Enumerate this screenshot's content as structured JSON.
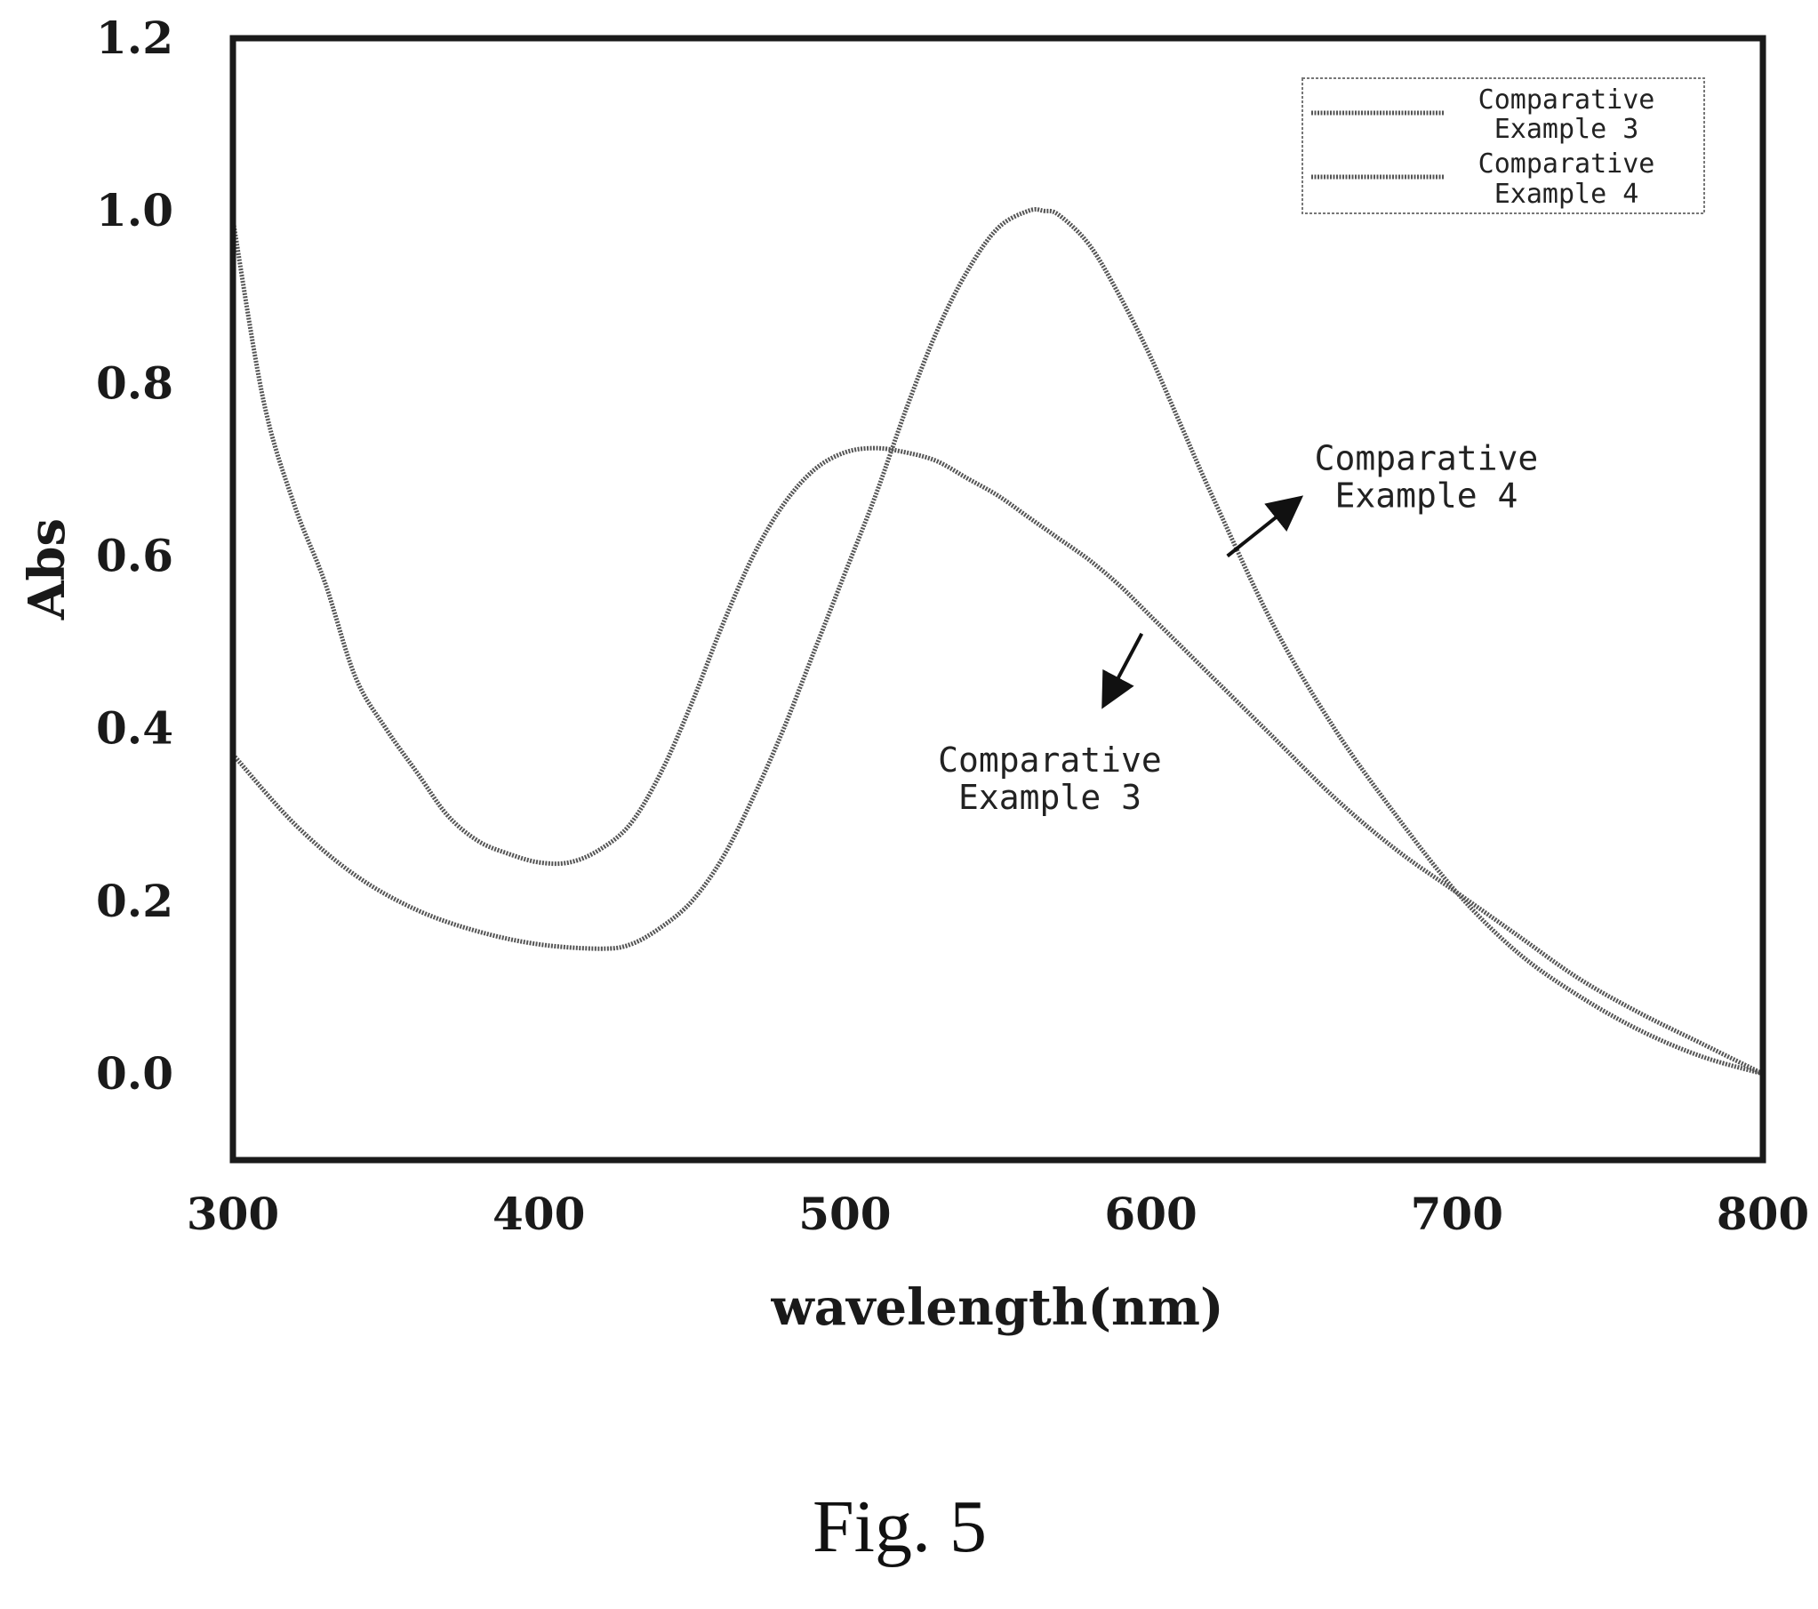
{
  "chart_data": {
    "type": "line",
    "title": "",
    "xlabel": "wavelength(nm)",
    "ylabel": "Abs",
    "xlim": [
      300,
      800
    ],
    "ylim": [
      -0.1,
      1.2
    ],
    "x_ticks": [
      300,
      400,
      500,
      600,
      700,
      800
    ],
    "y_ticks": [
      0.0,
      0.2,
      0.4,
      0.6,
      0.8,
      1.0,
      1.2
    ],
    "x_tick_labels": [
      "300",
      "400",
      "500",
      "600",
      "700",
      "800"
    ],
    "y_tick_labels": [
      "0.0",
      "0.2",
      "0.4",
      "0.6",
      "0.8",
      "1.0",
      "1.2"
    ],
    "grid": false,
    "legend_position": "top-right",
    "series": [
      {
        "name": "Comparative Example 3",
        "legend_lines": [
          "Comparative",
          "Example 3"
        ],
        "x": [
          300,
          310,
          320,
          330,
          340,
          350,
          360,
          370,
          380,
          390,
          400,
          410,
          420,
          430,
          440,
          450,
          460,
          470,
          480,
          490,
          500,
          510,
          520,
          530,
          540,
          550,
          560,
          570,
          580,
          590,
          600,
          620,
          640,
          660,
          680,
          700,
          720,
          740,
          760,
          780,
          800
        ],
        "y": [
          0.99,
          0.78,
          0.66,
          0.57,
          0.46,
          0.4,
          0.35,
          0.3,
          0.27,
          0.255,
          0.245,
          0.245,
          0.26,
          0.29,
          0.35,
          0.43,
          0.52,
          0.6,
          0.66,
          0.7,
          0.72,
          0.725,
          0.72,
          0.71,
          0.69,
          0.67,
          0.645,
          0.62,
          0.595,
          0.565,
          0.53,
          0.46,
          0.39,
          0.32,
          0.26,
          0.21,
          0.16,
          0.11,
          0.07,
          0.035,
          0.0
        ]
      },
      {
        "name": "Comparative Example 4",
        "legend_lines": [
          "Comparative",
          "Example 4"
        ],
        "x": [
          300,
          320,
          340,
          360,
          380,
          400,
          420,
          430,
          440,
          450,
          460,
          470,
          480,
          490,
          500,
          510,
          520,
          530,
          540,
          550,
          560,
          565,
          570,
          580,
          590,
          600,
          610,
          620,
          640,
          660,
          680,
          700,
          720,
          740,
          760,
          780,
          800
        ],
        "y": [
          0.37,
          0.29,
          0.23,
          0.19,
          0.165,
          0.15,
          0.145,
          0.15,
          0.17,
          0.2,
          0.25,
          0.32,
          0.4,
          0.49,
          0.58,
          0.67,
          0.77,
          0.86,
          0.93,
          0.98,
          1.0,
          1.0,
          0.995,
          0.96,
          0.9,
          0.83,
          0.75,
          0.67,
          0.52,
          0.4,
          0.3,
          0.21,
          0.14,
          0.09,
          0.05,
          0.02,
          0.0
        ]
      }
    ],
    "annotations": [
      {
        "lines": [
          "Comparative",
          "Example 4"
        ],
        "series": "Comparative Example 4",
        "arrow_from": [
          625,
          0.6
        ],
        "arrow_to": [
          648,
          0.665
        ],
        "text_at": [
          690,
          0.7
        ]
      },
      {
        "lines": [
          "Comparative",
          "Example 3"
        ],
        "series": "Comparative Example 3",
        "arrow_from": [
          597,
          0.51
        ],
        "arrow_to": [
          585,
          0.43
        ],
        "text_at": [
          567,
          0.35
        ]
      }
    ]
  },
  "figure": {
    "caption": "Fig. 5"
  }
}
